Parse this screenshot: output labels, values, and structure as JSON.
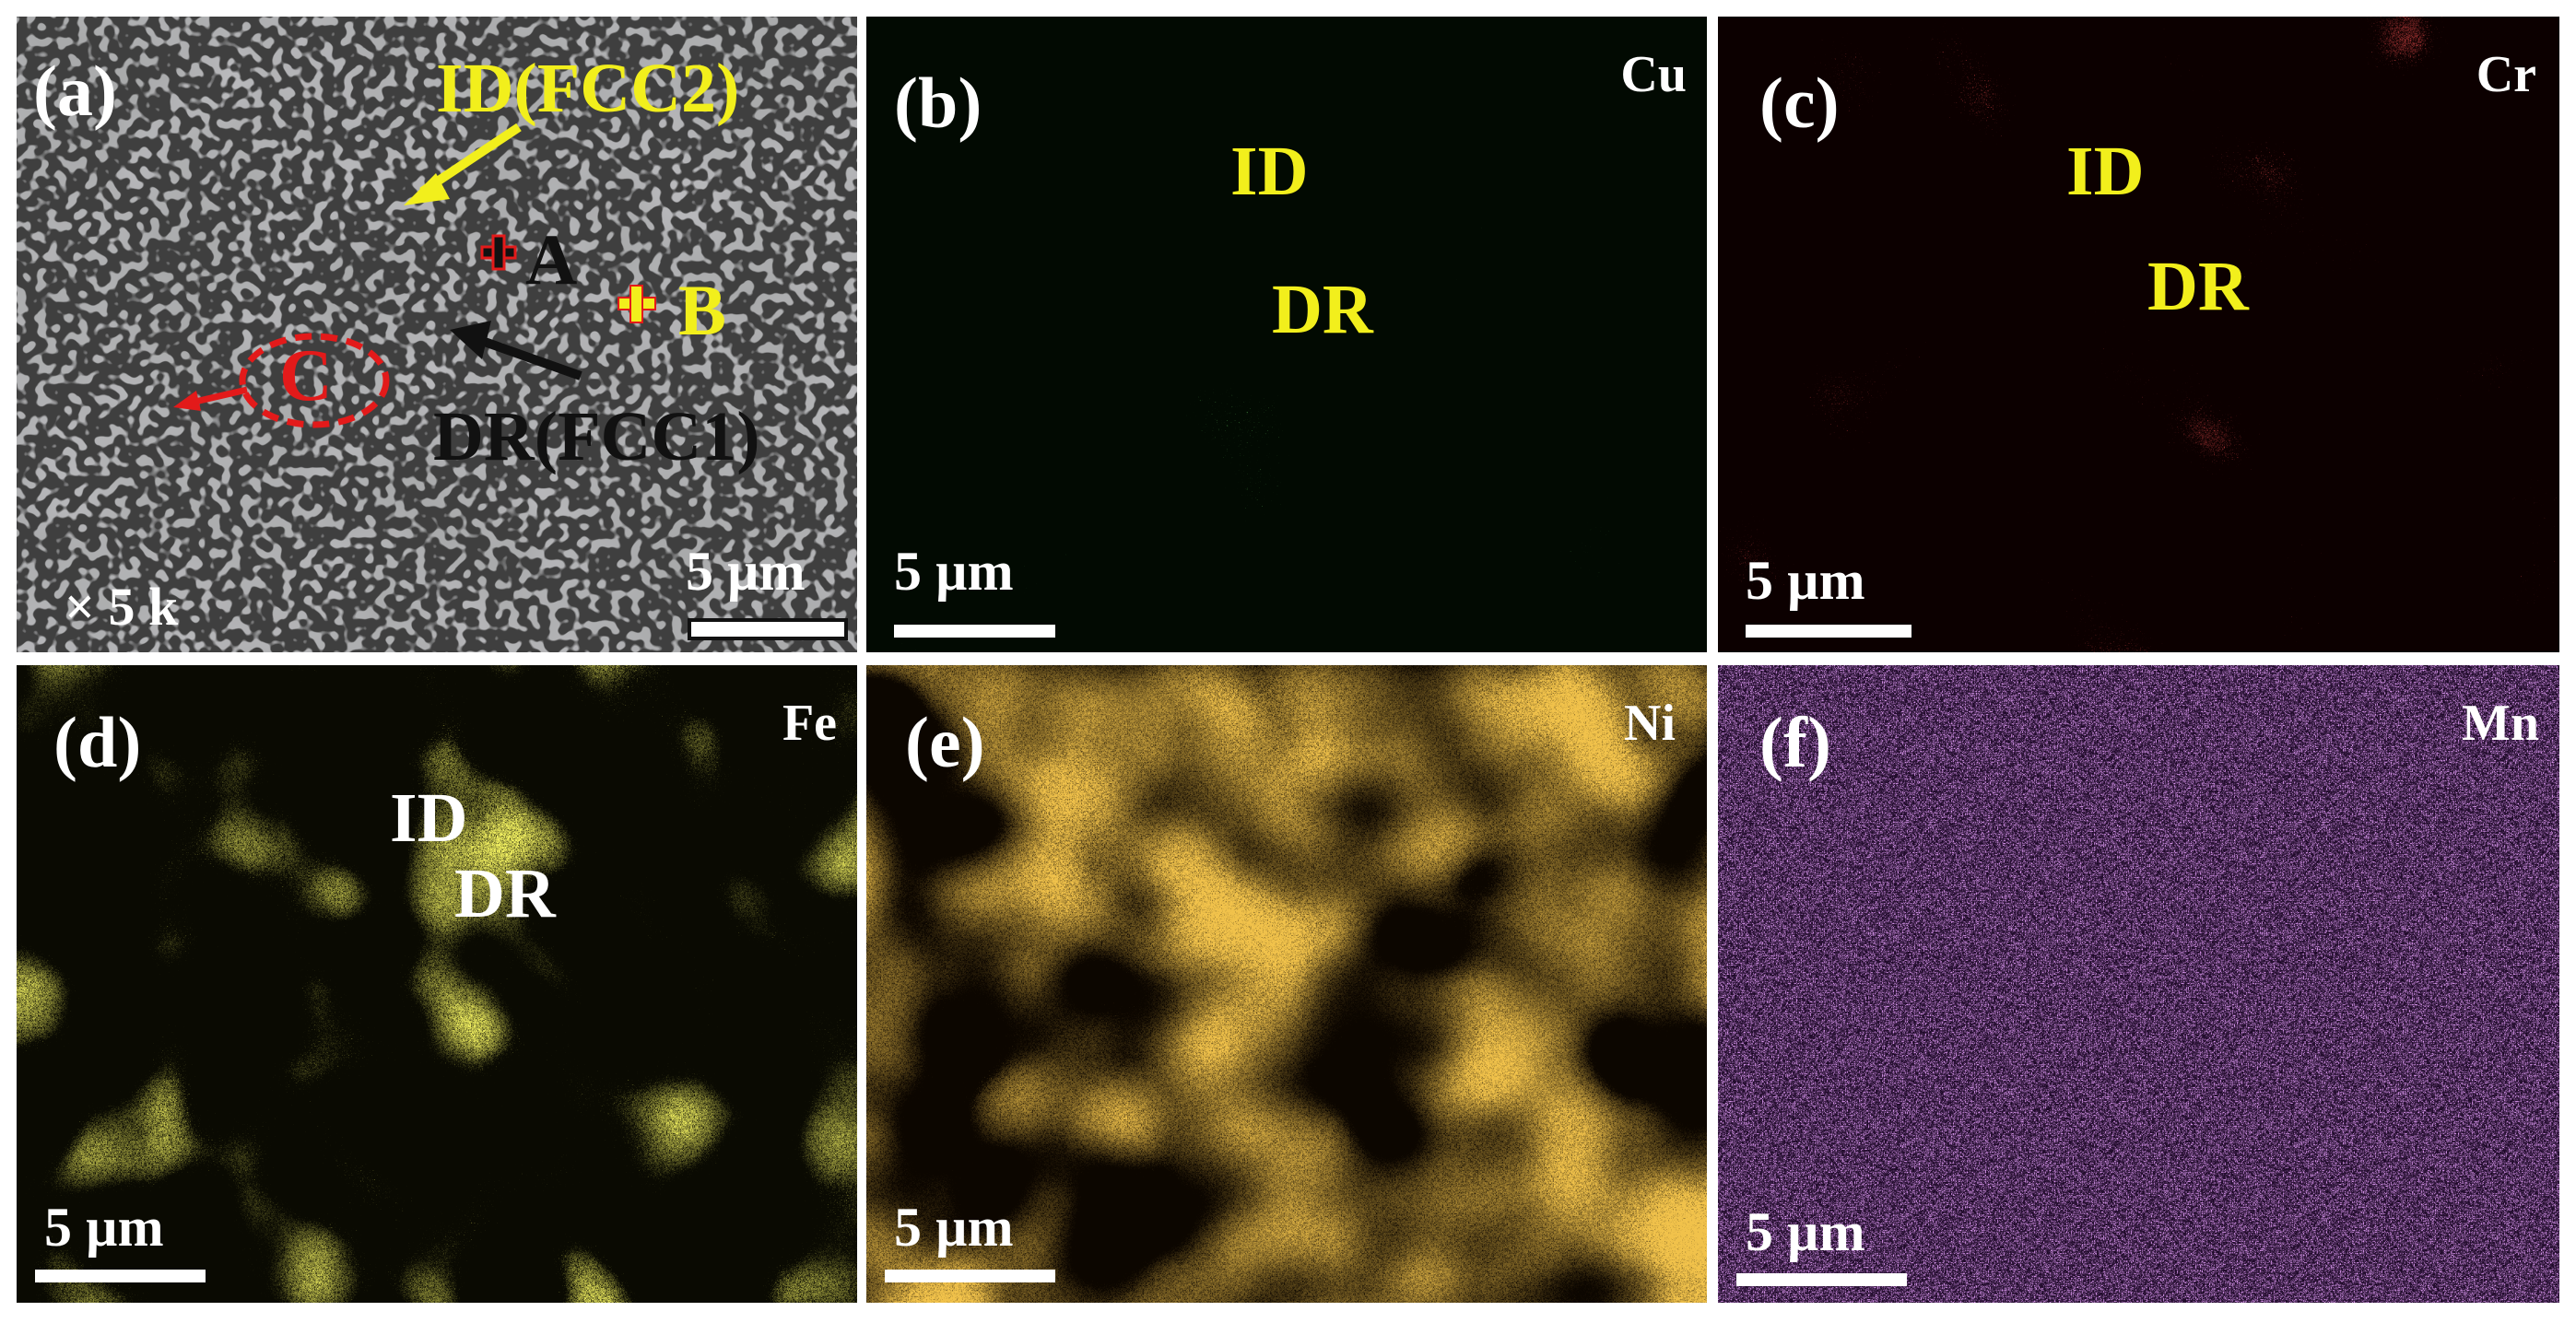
{
  "panels": [
    {
      "key": "a",
      "label": "(a)",
      "element": "",
      "scale": "5 µm",
      "magnification": "× 5 k",
      "annotations": {
        "id_label": "ID(FCC2)",
        "dr_label": "DR(FCC1)",
        "point_a": "A",
        "point_b": "B",
        "point_c": "C"
      }
    },
    {
      "key": "b",
      "label": "(b)",
      "element": "Cu",
      "scale": "5 µm",
      "region_id": "ID",
      "region_dr": "DR",
      "map_color": "#2ed12a"
    },
    {
      "key": "c",
      "label": "(c)",
      "element": "Cr",
      "scale": "5 µm",
      "region_id": "ID",
      "region_dr": "DR",
      "map_color": "#ee1b1b"
    },
    {
      "key": "d",
      "label": "(d)",
      "element": "Fe",
      "scale": "5 µm",
      "region_id": "ID",
      "region_dr": "DR",
      "map_color": "#e2e11e"
    },
    {
      "key": "e",
      "label": "(e)",
      "element": "Ni",
      "scale": "5 µm",
      "map_color": "#e08a12"
    },
    {
      "key": "f",
      "label": "(f)",
      "element": "Mn",
      "scale": "5 µm",
      "map_color": "#b050e0"
    }
  ],
  "colors": {
    "annotation_yellow": "#f2ef1c",
    "annotation_red": "#e31a1a",
    "annotation_black": "#111111",
    "label_white": "#ffffff"
  }
}
